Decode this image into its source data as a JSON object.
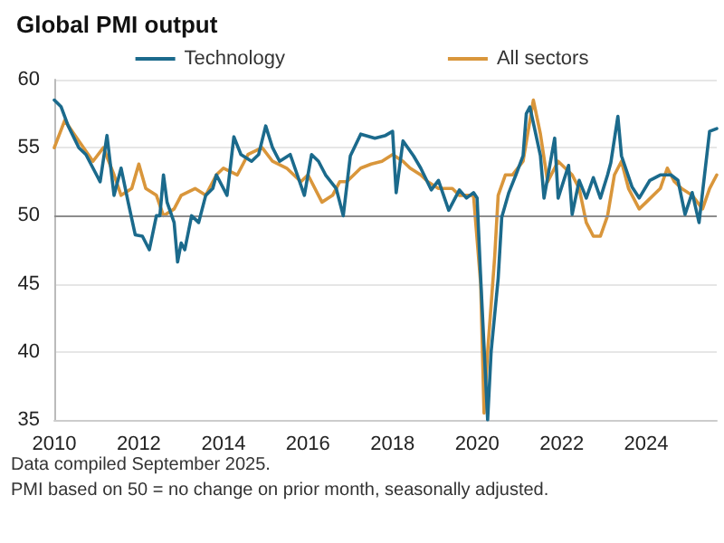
{
  "chart_data": {
    "type": "line",
    "title": "Global PMI output",
    "xlim": [
      "2010-01",
      "2025-09"
    ],
    "xticks": [
      "2010",
      "2012",
      "2014",
      "2016",
      "2018",
      "2020",
      "2022",
      "2024"
    ],
    "ylim": [
      35,
      60
    ],
    "yticks": [
      35,
      40,
      45,
      50,
      55,
      60
    ],
    "grid": "y",
    "legend": "top",
    "marker": "none",
    "line_style": "solid",
    "ref_lines": [
      {
        "axis": "y",
        "value": 50,
        "label": null,
        "color": "#8c8c8c"
      }
    ],
    "annotations": [
      "Data compiled September 2025.",
      "PMI based on 50 = no change on prior month, seasonally adjusted."
    ],
    "series": [
      {
        "name": "Technology",
        "color": "#1b6a8c",
        "x": [
          "2010-01",
          "2010-03",
          "2010-05",
          "2010-08",
          "2010-10",
          "2011-01",
          "2011-02",
          "2011-04",
          "2011-06",
          "2011-08",
          "2011-10",
          "2011-12",
          "2012-02",
          "2012-04",
          "2012-06",
          "2012-07",
          "2012-08",
          "2012-09",
          "2012-11",
          "2012-12",
          "2013-01",
          "2013-02",
          "2013-04",
          "2013-06",
          "2013-08",
          "2013-10",
          "2013-11",
          "2014-02",
          "2014-04",
          "2014-06",
          "2014-09",
          "2014-11",
          "2015-01",
          "2015-03",
          "2015-05",
          "2015-08",
          "2015-10",
          "2015-12",
          "2016-02",
          "2016-04",
          "2016-06",
          "2016-09",
          "2016-11",
          "2017-01",
          "2017-04",
          "2017-08",
          "2017-11",
          "2018-01",
          "2018-02",
          "2018-04",
          "2018-07",
          "2018-09",
          "2018-12",
          "2019-02",
          "2019-05",
          "2019-08",
          "2019-10",
          "2019-12",
          "2020-01",
          "2020-02",
          "2020-04",
          "2020-05",
          "2020-07",
          "2020-08",
          "2020-10",
          "2020-12",
          "2021-02",
          "2021-03",
          "2021-04",
          "2021-07",
          "2021-08",
          "2021-11",
          "2021-12",
          "2022-03",
          "2022-04",
          "2022-06",
          "2022-08",
          "2022-10",
          "2022-12",
          "2023-02",
          "2023-03",
          "2023-05",
          "2023-06",
          "2023-09",
          "2023-11",
          "2024-02",
          "2024-05",
          "2024-08",
          "2024-10",
          "2024-12",
          "2025-02",
          "2025-04",
          "2025-05",
          "2025-07",
          "2025-09"
        ],
        "values": [
          58.5,
          58,
          56.6,
          55,
          54.5,
          53,
          52.5,
          55.9,
          51.5,
          53.5,
          51,
          48.6,
          48.5,
          47.5,
          50,
          50,
          53,
          51,
          49.5,
          46.6,
          48,
          47.5,
          50,
          49.5,
          51.5,
          52,
          53,
          51.5,
          55.8,
          54.5,
          54,
          54.5,
          56.6,
          55,
          54,
          54.5,
          53,
          51.5,
          54.5,
          54,
          53,
          52,
          50,
          54.4,
          56,
          55.7,
          55.9,
          56.2,
          51.7,
          55.5,
          54.4,
          53.5,
          51.9,
          52.6,
          50.4,
          51.9,
          51.3,
          51.7,
          51.3,
          45.4,
          35,
          40,
          45.4,
          49.9,
          51.7,
          53,
          54.4,
          57.5,
          58,
          54.4,
          51.3,
          55.7,
          51.3,
          53.7,
          50.1,
          52.6,
          51.3,
          52.8,
          51.3,
          53,
          53.9,
          57.3,
          54.4,
          52.1,
          51.3,
          52.6,
          53,
          53,
          52.6,
          50.1,
          51.7,
          49.5,
          51.7,
          56.2,
          56.4
        ]
      },
      {
        "name": "All sectors",
        "color": "#d9963b",
        "x": [
          "2010-01",
          "2010-04",
          "2010-08",
          "2010-12",
          "2011-03",
          "2011-06",
          "2011-08",
          "2011-11",
          "2012-01",
          "2012-03",
          "2012-06",
          "2012-08",
          "2012-11",
          "2013-01",
          "2013-05",
          "2013-08",
          "2013-11",
          "2014-01",
          "2014-05",
          "2014-08",
          "2014-12",
          "2015-03",
          "2015-07",
          "2015-11",
          "2016-01",
          "2016-05",
          "2016-08",
          "2016-10",
          "2016-12",
          "2017-04",
          "2017-07",
          "2017-10",
          "2018-01",
          "2018-04",
          "2018-06",
          "2018-09",
          "2018-11",
          "2019-02",
          "2019-06",
          "2019-08",
          "2019-10",
          "2019-12",
          "2020-02",
          "2020-03",
          "2020-04",
          "2020-06",
          "2020-07",
          "2020-09",
          "2020-11",
          "2021-02",
          "2021-05",
          "2021-07",
          "2021-09",
          "2021-12",
          "2022-04",
          "2022-06",
          "2022-08",
          "2022-10",
          "2022-12",
          "2023-02",
          "2023-04",
          "2023-06",
          "2023-08",
          "2023-11",
          "2024-01",
          "2024-05",
          "2024-07",
          "2024-09",
          "2024-11",
          "2025-02",
          "2025-05",
          "2025-07",
          "2025-09"
        ],
        "values": [
          55,
          57,
          55.5,
          54,
          55,
          53,
          51.5,
          52,
          53.8,
          52,
          51.5,
          50,
          50.5,
          51.5,
          52,
          51.5,
          53,
          53.5,
          53,
          54.5,
          55,
          54,
          53.5,
          52.5,
          53,
          51,
          51.5,
          52.5,
          52.5,
          53.5,
          53.8,
          54,
          54.5,
          54,
          53.5,
          53,
          52.5,
          52,
          52,
          51.5,
          51.5,
          51.5,
          45,
          35.5,
          40,
          47,
          51.5,
          53,
          53,
          54,
          58.5,
          56,
          52.5,
          54,
          53,
          52,
          49.5,
          48.5,
          48.5,
          50,
          53,
          54,
          52,
          50.5,
          51,
          52,
          53.5,
          52.5,
          52,
          51.5,
          50.5,
          52,
          53
        ]
      }
    ]
  }
}
